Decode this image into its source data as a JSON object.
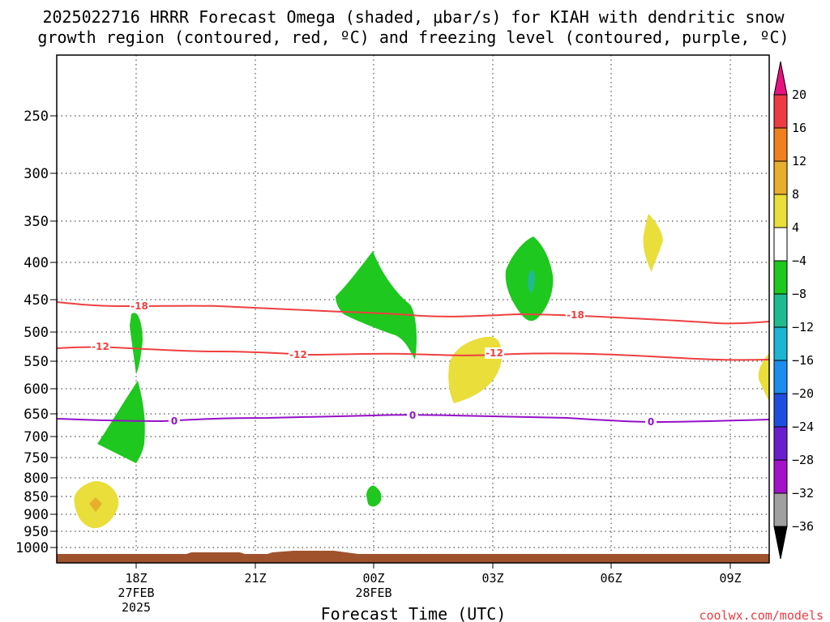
{
  "chart_data": {
    "type": "contour",
    "title_line1": "2025022716 HRRR Forecast Omega (shaded, μbar/s) for KIAH with dendritic snow",
    "title_line2": "growth region (contoured, red, ºC) and freezing level (contoured, purple, ºC)",
    "xlabel": "Forecast Time (UTC)",
    "credit": "coolwx.com/models",
    "x_ticks": [
      {
        "label": "18Z",
        "sub1": "27FEB",
        "sub2": "2025"
      },
      {
        "label": "21Z",
        "sub1": "",
        "sub2": ""
      },
      {
        "label": "00Z",
        "sub1": "28FEB",
        "sub2": ""
      },
      {
        "label": "03Z",
        "sub1": "",
        "sub2": ""
      },
      {
        "label": "06Z",
        "sub1": "",
        "sub2": ""
      },
      {
        "label": "09Z",
        "sub1": "",
        "sub2": ""
      }
    ],
    "y_ticks": [
      "250",
      "300",
      "350",
      "400",
      "450",
      "500",
      "550",
      "600",
      "650",
      "700",
      "750",
      "800",
      "850",
      "900",
      "950",
      "1000"
    ],
    "colorbar": {
      "labels": [
        "20",
        "16",
        "12",
        "8",
        "4",
        "-4",
        "-8",
        "-12",
        "-16",
        "-20",
        "-24",
        "-28",
        "-32",
        "-36"
      ],
      "colors": [
        "#e8117e",
        "#ee3a43",
        "#ef7f1f",
        "#e8ae2d",
        "#e9de3a",
        "#ffffff",
        "#1ec81e",
        "#1fbb8f",
        "#1cb5d3",
        "#1c8cef",
        "#1e4ee0",
        "#6a1fcf",
        "#a312c8",
        "#a0a0a0",
        "#000000"
      ]
    },
    "contours": [
      {
        "name": "-18",
        "color": "#ee4040",
        "labels": [
          "-18",
          "-18"
        ]
      },
      {
        "name": "-12",
        "color": "#ee4040",
        "labels": [
          "-12",
          "-12",
          "-12"
        ]
      },
      {
        "name": "0",
        "color": "#9410c8",
        "labels": [
          "0",
          "0",
          "0"
        ]
      }
    ]
  }
}
